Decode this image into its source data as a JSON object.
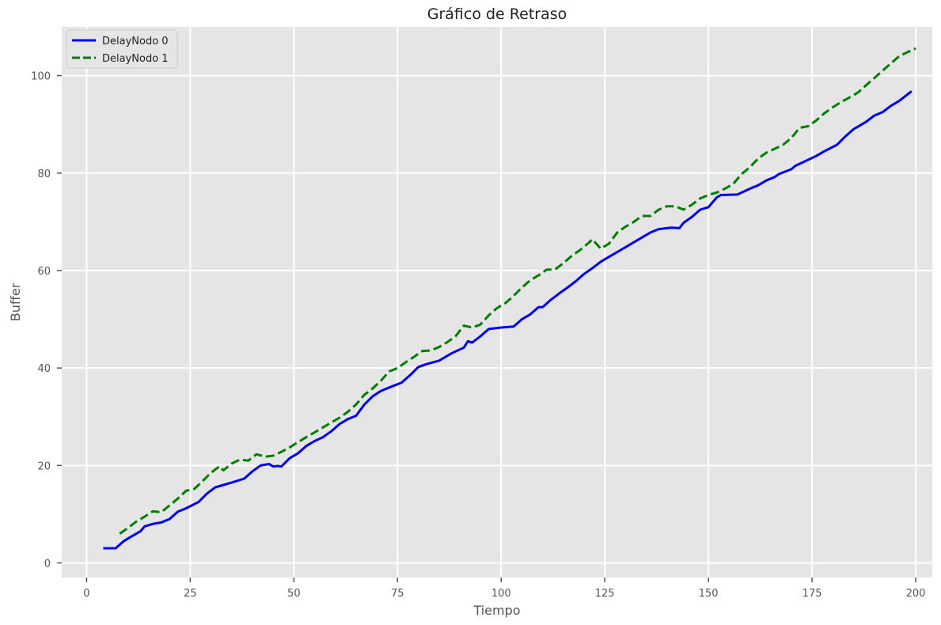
{
  "chart_data": {
    "type": "line",
    "title": "Gráfico de Retraso",
    "xlabel": "Tiempo",
    "ylabel": "Buffer",
    "xlim": [
      -6,
      204
    ],
    "ylim": [
      -3,
      110
    ],
    "xticks": [
      0,
      25,
      50,
      75,
      100,
      125,
      150,
      175,
      200
    ],
    "yticks": [
      0,
      20,
      40,
      60,
      80,
      100
    ],
    "grid": true,
    "legend_position": "top-left",
    "series": [
      {
        "name": "DelayNodo 0",
        "color": "#0000ff",
        "style": "solid",
        "x": [
          4,
          6,
          7,
          9,
          11,
          13,
          14,
          16,
          18,
          20,
          22,
          24,
          27,
          29,
          31,
          33,
          35,
          38,
          40,
          42,
          44,
          45,
          46,
          47,
          49,
          51,
          53,
          55,
          57,
          59,
          61,
          63,
          65,
          67,
          69,
          71,
          73,
          76,
          78,
          80,
          82,
          85,
          88,
          91,
          92,
          93,
          95,
          97,
          100,
          103,
          105,
          107,
          109,
          110,
          112,
          114,
          116,
          118,
          120,
          122,
          124,
          126,
          128,
          130,
          132,
          134,
          136,
          138,
          141,
          143,
          144,
          146,
          148,
          150,
          152,
          153,
          157,
          160,
          162,
          164,
          166,
          167,
          170,
          171,
          173,
          176,
          178,
          181,
          183,
          185,
          188,
          190,
          192,
          194,
          196,
          199
        ],
        "y": [
          3.0,
          3.0,
          3.0,
          4.5,
          5.5,
          6.5,
          7.5,
          8.0,
          8.3,
          9.0,
          10.5,
          11.2,
          12.5,
          14.2,
          15.5,
          16.0,
          16.5,
          17.3,
          18.8,
          20.0,
          20.3,
          19.8,
          19.9,
          19.8,
          21.5,
          22.5,
          24.0,
          25.0,
          25.8,
          27.0,
          28.5,
          29.5,
          30.2,
          32.5,
          34.2,
          35.3,
          36.0,
          37.0,
          38.5,
          40.2,
          40.8,
          41.5,
          43.0,
          44.2,
          45.5,
          45.2,
          46.5,
          48.0,
          48.3,
          48.5,
          50.0,
          51.0,
          52.5,
          52.5,
          54.0,
          55.3,
          56.5,
          57.8,
          59.3,
          60.5,
          61.8,
          62.8,
          63.8,
          64.8,
          65.8,
          66.8,
          67.8,
          68.5,
          68.8,
          68.7,
          69.8,
          71.0,
          72.5,
          73.0,
          75.0,
          75.5,
          75.6,
          76.8,
          77.5,
          78.5,
          79.2,
          79.8,
          80.8,
          81.5,
          82.3,
          83.5,
          84.5,
          85.8,
          87.5,
          89.0,
          90.5,
          91.8,
          92.5,
          93.8,
          94.8,
          96.8
        ]
      },
      {
        "name": "DelayNodo 1",
        "color": "#008000",
        "style": "dashed",
        "x": [
          8,
          10,
          12,
          14,
          16,
          18,
          20,
          22,
          24,
          26,
          28,
          30,
          32,
          33,
          35,
          37,
          39,
          41,
          43,
          45,
          47,
          49,
          51,
          53,
          55,
          57,
          59,
          61,
          63,
          65,
          67,
          69,
          71,
          73,
          75,
          77,
          79,
          81,
          83,
          85,
          87,
          89,
          91,
          93,
          95,
          97,
          99,
          101,
          103,
          105,
          107,
          109,
          111,
          113,
          115,
          117,
          119,
          121,
          122,
          124,
          126,
          128,
          130,
          132,
          134,
          136,
          138,
          140,
          142,
          144,
          146,
          148,
          150,
          152,
          154,
          156,
          158,
          160,
          162,
          164,
          166,
          168,
          170,
          172,
          174,
          176,
          178,
          180,
          182,
          184,
          186,
          188,
          190,
          192,
          194,
          196,
          198,
          200
        ],
        "y": [
          6.0,
          7.2,
          8.5,
          9.5,
          10.6,
          10.4,
          11.8,
          13.2,
          14.8,
          15.2,
          16.8,
          18.5,
          19.8,
          19.0,
          20.4,
          21.2,
          21.0,
          22.3,
          21.8,
          22.0,
          22.8,
          23.7,
          24.8,
          25.8,
          26.8,
          27.8,
          28.8,
          29.8,
          31.0,
          32.5,
          34.5,
          35.8,
          37.4,
          39.3,
          40.0,
          41.2,
          42.3,
          43.5,
          43.6,
          44.3,
          45.3,
          46.5,
          48.7,
          48.3,
          48.9,
          50.8,
          52.3,
          53.3,
          54.8,
          56.5,
          58.0,
          59.0,
          60.2,
          60.2,
          61.5,
          63.0,
          64.2,
          65.6,
          66.4,
          64.5,
          65.5,
          67.8,
          69.0,
          70.0,
          71.2,
          71.2,
          72.5,
          73.2,
          73.2,
          72.5,
          73.5,
          74.8,
          75.5,
          76.0,
          76.8,
          77.8,
          79.8,
          81.2,
          83.0,
          84.2,
          85.0,
          85.8,
          87.2,
          89.3,
          89.6,
          90.8,
          92.3,
          93.5,
          94.6,
          95.5,
          96.5,
          98.0,
          99.5,
          101.0,
          102.5,
          104.0,
          104.8,
          105.6
        ]
      }
    ]
  }
}
